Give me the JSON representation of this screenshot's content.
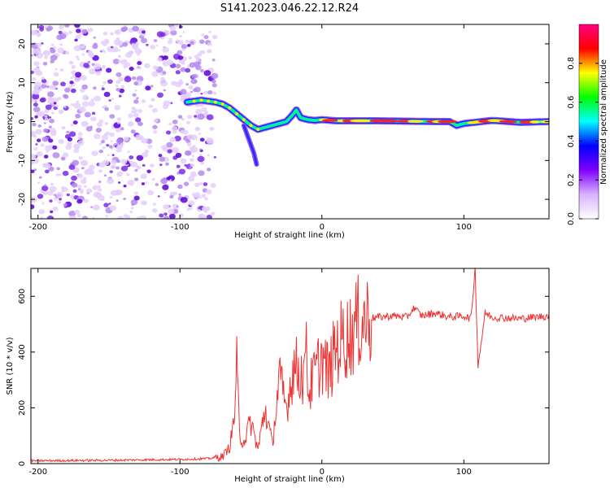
{
  "chart_data": [
    {
      "type": "heatmap",
      "title": "S141.2023.046.22.12.R24",
      "xlabel": "Height of straight line (km)",
      "ylabel": "Frequency (Hz)",
      "xlim": [
        -205,
        160
      ],
      "ylim": [
        -25,
        25
      ],
      "xticks": [
        -200,
        -100,
        0,
        100
      ],
      "yticks": [
        -20,
        -10,
        0,
        10,
        20
      ],
      "colorbar": {
        "label": "Normalized spectral amplitude",
        "range": [
          0,
          1
        ],
        "ticks": [
          "0.0",
          "0.2",
          "0.4",
          "0.6",
          "0.8"
        ],
        "colors": [
          "#ffffff",
          "#d9b3ff",
          "#8000ff",
          "#0000ff",
          "#00ffff",
          "#00ff00",
          "#ffff00",
          "#ff0000",
          "#ff0080"
        ]
      },
      "ridge": {
        "x": [
          -95,
          -85,
          -75,
          -70,
          -65,
          -60,
          -55,
          -50,
          -45,
          -40,
          -35,
          -30,
          -25,
          -20,
          -18,
          -15,
          -10,
          -5,
          0,
          10,
          20,
          40,
          60,
          80,
          90,
          95,
          100,
          120,
          140,
          160
        ],
        "y": [
          5,
          5.5,
          5,
          4.5,
          3.5,
          2,
          0.5,
          -1,
          -2,
          -1.5,
          -1,
          -0.5,
          0,
          2,
          3,
          1,
          0.5,
          0.3,
          0.5,
          0.2,
          0.2,
          0.2,
          0.1,
          0,
          0,
          -1,
          -0.5,
          0.3,
          -0.2,
          0
        ]
      },
      "branch": {
        "x": [
          -55,
          -52,
          -50,
          -48,
          -46
        ],
        "y": [
          -1,
          -4,
          -6,
          -8,
          -11
        ]
      }
    },
    {
      "type": "line",
      "xlabel": "Height of straight line (km)",
      "ylabel": "SNR (10 * v/v)",
      "xlim": [
        -205,
        160
      ],
      "ylim": [
        0,
        700
      ],
      "xticks": [
        -200,
        -100,
        0,
        100
      ],
      "yticks": [
        0,
        200,
        400,
        600
      ],
      "series": [
        {
          "name": "SNR",
          "color": "#ee3333",
          "x": [
            -205,
            -150,
            -100,
            -80,
            -70,
            -65,
            -62,
            -60,
            -58,
            -55,
            -50,
            -45,
            -40,
            -35,
            -30,
            -25,
            -20,
            -15,
            -12,
            -11,
            -10,
            -5,
            0,
            5,
            10,
            15,
            20,
            25,
            30,
            40,
            50,
            60,
            65,
            70,
            80,
            90,
            100,
            105,
            108,
            110,
            115,
            120,
            140,
            160
          ],
          "y": [
            10,
            12,
            15,
            18,
            25,
            60,
            150,
            340,
            100,
            80,
            150,
            50,
            200,
            70,
            300,
            200,
            350,
            330,
            300,
            630,
            250,
            320,
            380,
            320,
            420,
            450,
            460,
            500,
            520,
            525,
            530,
            525,
            560,
            530,
            540,
            525,
            530,
            520,
            700,
            350,
            540,
            525,
            520,
            530
          ]
        }
      ]
    }
  ]
}
